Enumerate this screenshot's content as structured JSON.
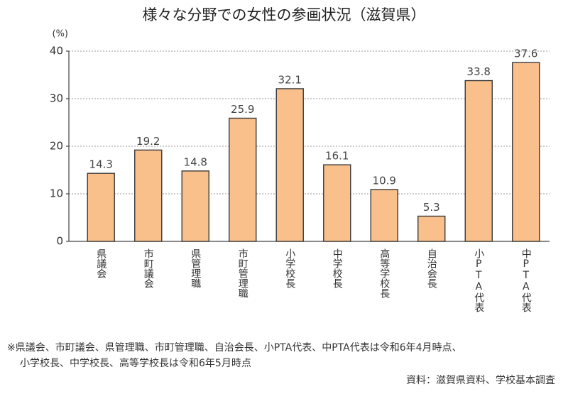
{
  "chart_data": {
    "type": "bar",
    "title": "様々な分野での女性の参画状況（滋賀県）",
    "y_label": "(%)",
    "categories": [
      "県議会",
      "市町議会",
      "県管理職",
      "市町管理職",
      "小学校長",
      "中学校長",
      "高等学校長",
      "自治会長",
      "小PTA代表",
      "中PTA代表"
    ],
    "values": [
      14.3,
      19.2,
      14.8,
      25.9,
      32.1,
      16.1,
      10.9,
      5.3,
      33.8,
      37.6
    ],
    "color": "#f9c08c",
    "ylim": [
      0,
      40
    ],
    "yticks": [
      0,
      10,
      20,
      30,
      40
    ],
    "grid": true,
    "notes": [
      "※県議会、市町議会、県管理職、市町管理職、自治会長、小PTA代表、中PTA代表は令和6年4月時点、",
      "小学校長、中学校長、高等学校長は令和6年5月時点"
    ],
    "source": "資料：滋賀県資料、学校基本調査"
  }
}
